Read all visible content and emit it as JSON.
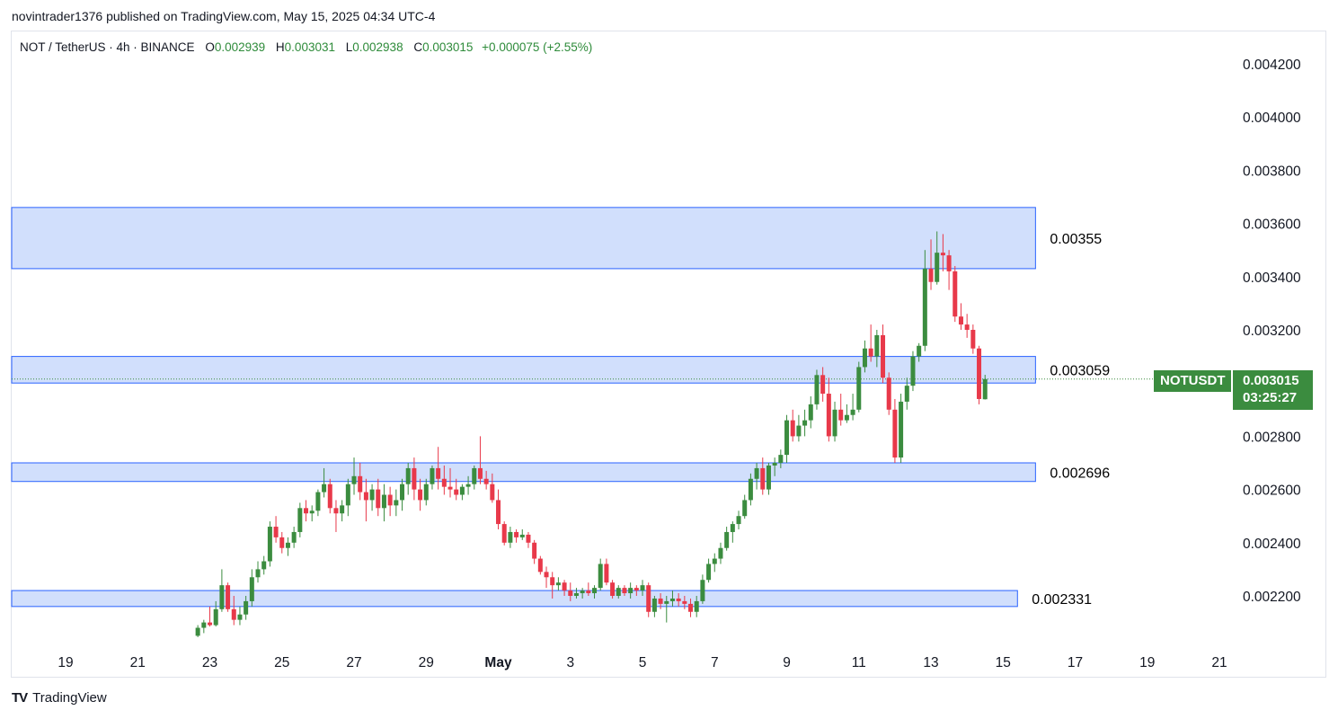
{
  "header": {
    "published": "novintrader1376 published on TradingView.com, May 15, 2025 04:34 UTC-4"
  },
  "legend": {
    "symbol": "NOT / TetherUS · 4h · BINANCE",
    "o_key": "O",
    "o_val": "0.002939",
    "h_key": "H",
    "h_val": "0.003031",
    "l_key": "L",
    "l_val": "0.002938",
    "c_key": "C",
    "c_val": "0.003015",
    "change": "+0.000075 (+2.55%)"
  },
  "price_tag": {
    "symbol": "NOTUSDT",
    "price": "0.003015",
    "countdown": "03:25:27"
  },
  "footer": {
    "brand": "TradingView",
    "logo": "TV"
  },
  "colors": {
    "up": "#3b8c3f",
    "down": "#e8394a",
    "zone_fill": "#d1dffc",
    "zone_stroke": "#2962ff",
    "tag": "#3b8c3f"
  },
  "chart_data": {
    "type": "candlestick",
    "ylim": [
      0.00205,
      0.0043
    ],
    "y_ticks": [
      "0.002200",
      "0.002400",
      "0.002600",
      "0.002800",
      "0.003000",
      "0.003200",
      "0.003400",
      "0.003600",
      "0.003800",
      "0.004000",
      "0.004200"
    ],
    "x_ticks": [
      {
        "label": "19",
        "day": 19
      },
      {
        "label": "21",
        "day": 21
      },
      {
        "label": "23",
        "day": 23
      },
      {
        "label": "25",
        "day": 25
      },
      {
        "label": "27",
        "day": 27
      },
      {
        "label": "29",
        "day": 29
      },
      {
        "label": "May",
        "day": 31
      },
      {
        "label": "3",
        "day": 33
      },
      {
        "label": "5",
        "day": 35
      },
      {
        "label": "7",
        "day": 37
      },
      {
        "label": "9",
        "day": 39
      },
      {
        "label": "11",
        "day": 41
      },
      {
        "label": "13",
        "day": 43
      },
      {
        "label": "15",
        "day": 45
      },
      {
        "label": "17",
        "day": 47
      },
      {
        "label": "19",
        "day": 49
      },
      {
        "label": "21",
        "day": 51
      }
    ],
    "zones": [
      {
        "label": "0.00355",
        "low": 0.00343,
        "high": 0.00366,
        "end_day": 45.9
      },
      {
        "label": "0.003059",
        "low": 0.003,
        "high": 0.0031,
        "end_day": 45.9
      },
      {
        "label": "0.002696",
        "low": 0.00263,
        "high": 0.0027,
        "end_day": 45.9
      },
      {
        "label": "0.002331",
        "low": 0.00216,
        "high": 0.00222,
        "end_day": 45.4
      }
    ],
    "current_price": 0.003015,
    "candles_start_day": 22.667,
    "candle_interval_days": 0.16667,
    "candles": [
      [
        0.00205,
        0.00209,
        0.002045,
        0.00208
      ],
      [
        0.00208,
        0.00211,
        0.00206,
        0.0021
      ],
      [
        0.0021,
        0.00216,
        0.002085,
        0.00209
      ],
      [
        0.00209,
        0.00218,
        0.002085,
        0.00215
      ],
      [
        0.00215,
        0.0023,
        0.00214,
        0.00224
      ],
      [
        0.00224,
        0.00225,
        0.00214,
        0.00215
      ],
      [
        0.00215,
        0.0022,
        0.00209,
        0.00211
      ],
      [
        0.00211,
        0.00216,
        0.00209,
        0.00213
      ],
      [
        0.00213,
        0.0022,
        0.00211,
        0.00218
      ],
      [
        0.00218,
        0.0023,
        0.00216,
        0.00227
      ],
      [
        0.00227,
        0.00233,
        0.00225,
        0.0023
      ],
      [
        0.0023,
        0.00235,
        0.00228,
        0.00233
      ],
      [
        0.00233,
        0.00248,
        0.00231,
        0.00246
      ],
      [
        0.00246,
        0.0025,
        0.0024,
        0.00242
      ],
      [
        0.00242,
        0.00244,
        0.00236,
        0.00238
      ],
      [
        0.00238,
        0.00242,
        0.00235,
        0.0024
      ],
      [
        0.0024,
        0.00246,
        0.00238,
        0.00244
      ],
      [
        0.00244,
        0.00255,
        0.00242,
        0.00253
      ],
      [
        0.00253,
        0.00256,
        0.00248,
        0.00251
      ],
      [
        0.00251,
        0.00254,
        0.00248,
        0.00252
      ],
      [
        0.00252,
        0.0026,
        0.0025,
        0.00259
      ],
      [
        0.00259,
        0.00268,
        0.00257,
        0.00262
      ],
      [
        0.00262,
        0.00264,
        0.00251,
        0.00253
      ],
      [
        0.00253,
        0.00256,
        0.00244,
        0.00251
      ],
      [
        0.00251,
        0.00256,
        0.00248,
        0.00254
      ],
      [
        0.00254,
        0.00264,
        0.0025,
        0.00262
      ],
      [
        0.00262,
        0.00272,
        0.00258,
        0.00265
      ],
      [
        0.00265,
        0.0027,
        0.00256,
        0.00259
      ],
      [
        0.00259,
        0.00264,
        0.00248,
        0.00256
      ],
      [
        0.00256,
        0.00262,
        0.00252,
        0.0026
      ],
      [
        0.0026,
        0.00264,
        0.0025,
        0.00253
      ],
      [
        0.00253,
        0.00262,
        0.00248,
        0.00258
      ],
      [
        0.00258,
        0.00261,
        0.0025,
        0.00254
      ],
      [
        0.00254,
        0.0026,
        0.0025,
        0.00256
      ],
      [
        0.00256,
        0.00264,
        0.00252,
        0.00262
      ],
      [
        0.00262,
        0.0027,
        0.00258,
        0.00268
      ],
      [
        0.00268,
        0.00272,
        0.00256,
        0.0026
      ],
      [
        0.0026,
        0.00264,
        0.00252,
        0.00256
      ],
      [
        0.00256,
        0.00264,
        0.00254,
        0.00262
      ],
      [
        0.00262,
        0.00269,
        0.0026,
        0.00268
      ],
      [
        0.00268,
        0.00276,
        0.0026,
        0.00264
      ],
      [
        0.00264,
        0.00269,
        0.00258,
        0.00261
      ],
      [
        0.00261,
        0.00268,
        0.00257,
        0.0026
      ],
      [
        0.0026,
        0.00264,
        0.00256,
        0.00258
      ],
      [
        0.00258,
        0.00262,
        0.00256,
        0.00261
      ],
      [
        0.00261,
        0.00265,
        0.00258,
        0.00262
      ],
      [
        0.00262,
        0.00269,
        0.0026,
        0.00268
      ],
      [
        0.00268,
        0.0028,
        0.00262,
        0.00264
      ],
      [
        0.00264,
        0.00267,
        0.0026,
        0.00262
      ],
      [
        0.00262,
        0.00266,
        0.00255,
        0.00256
      ],
      [
        0.00256,
        0.0026,
        0.00245,
        0.00247
      ],
      [
        0.00247,
        0.00248,
        0.00239,
        0.0024
      ],
      [
        0.0024,
        0.00246,
        0.00238,
        0.00244
      ],
      [
        0.00244,
        0.00245,
        0.0024,
        0.00242
      ],
      [
        0.00242,
        0.00245,
        0.00241,
        0.00243
      ],
      [
        0.00243,
        0.00244,
        0.00238,
        0.0024
      ],
      [
        0.0024,
        0.00241,
        0.00232,
        0.00234
      ],
      [
        0.00234,
        0.00235,
        0.00228,
        0.00229
      ],
      [
        0.00229,
        0.00231,
        0.00223,
        0.00227
      ],
      [
        0.00227,
        0.00229,
        0.00219,
        0.00224
      ],
      [
        0.00224,
        0.00227,
        0.00222,
        0.00225
      ],
      [
        0.00225,
        0.00226,
        0.0022,
        0.00222
      ],
      [
        0.00222,
        0.00225,
        0.00218,
        0.0022
      ],
      [
        0.0022,
        0.00223,
        0.00219,
        0.00221
      ],
      [
        0.00221,
        0.00223,
        0.00219,
        0.00222
      ],
      [
        0.00222,
        0.00225,
        0.0022,
        0.00221
      ],
      [
        0.00221,
        0.00224,
        0.00219,
        0.00223
      ],
      [
        0.00223,
        0.00234,
        0.00222,
        0.00232
      ],
      [
        0.00232,
        0.00234,
        0.00224,
        0.00225
      ],
      [
        0.00225,
        0.00226,
        0.00219,
        0.0022
      ],
      [
        0.0022,
        0.00224,
        0.00219,
        0.00223
      ],
      [
        0.00223,
        0.00224,
        0.0022,
        0.00221
      ],
      [
        0.00221,
        0.00225,
        0.00219,
        0.00223
      ],
      [
        0.00223,
        0.00224,
        0.0022,
        0.00222
      ],
      [
        0.00222,
        0.00226,
        0.0022,
        0.00224
      ],
      [
        0.00224,
        0.00225,
        0.00212,
        0.00214
      ],
      [
        0.00214,
        0.0022,
        0.00212,
        0.00219
      ],
      [
        0.00219,
        0.00221,
        0.00215,
        0.00217
      ],
      [
        0.00217,
        0.0022,
        0.0021,
        0.00218
      ],
      [
        0.00218,
        0.00222,
        0.00216,
        0.00219
      ],
      [
        0.00219,
        0.00221,
        0.00216,
        0.00218
      ],
      [
        0.00218,
        0.0022,
        0.00215,
        0.00217
      ],
      [
        0.00217,
        0.00219,
        0.00212,
        0.00214
      ],
      [
        0.00214,
        0.0022,
        0.00212,
        0.00218
      ],
      [
        0.00218,
        0.00228,
        0.00217,
        0.00226
      ],
      [
        0.00226,
        0.00234,
        0.00225,
        0.00232
      ],
      [
        0.00232,
        0.00236,
        0.00229,
        0.00234
      ],
      [
        0.00234,
        0.0024,
        0.00232,
        0.00238
      ],
      [
        0.00238,
        0.00246,
        0.00237,
        0.00244
      ],
      [
        0.00244,
        0.00248,
        0.0024,
        0.00247
      ],
      [
        0.00247,
        0.00252,
        0.00245,
        0.0025
      ],
      [
        0.0025,
        0.00258,
        0.00249,
        0.00256
      ],
      [
        0.00256,
        0.00266,
        0.00254,
        0.00264
      ],
      [
        0.00264,
        0.0027,
        0.0026,
        0.00268
      ],
      [
        0.00268,
        0.00272,
        0.00258,
        0.0026
      ],
      [
        0.0026,
        0.0027,
        0.00258,
        0.00269
      ],
      [
        0.00269,
        0.00272,
        0.00265,
        0.0027
      ],
      [
        0.0027,
        0.00275,
        0.00268,
        0.00273
      ],
      [
        0.00273,
        0.00288,
        0.0027,
        0.00286
      ],
      [
        0.00286,
        0.0029,
        0.00278,
        0.0028
      ],
      [
        0.0028,
        0.00288,
        0.00278,
        0.00284
      ],
      [
        0.00284,
        0.0029,
        0.0028,
        0.00286
      ],
      [
        0.00286,
        0.00295,
        0.00283,
        0.00292
      ],
      [
        0.00292,
        0.00305,
        0.0029,
        0.00303
      ],
      [
        0.00303,
        0.00306,
        0.00293,
        0.00296
      ],
      [
        0.00296,
        0.00302,
        0.00278,
        0.0028
      ],
      [
        0.0028,
        0.00293,
        0.00278,
        0.0029
      ],
      [
        0.0029,
        0.00296,
        0.00284,
        0.00286
      ],
      [
        0.00286,
        0.00292,
        0.00285,
        0.00288
      ],
      [
        0.00288,
        0.00296,
        0.00286,
        0.0029
      ],
      [
        0.0029,
        0.00308,
        0.00289,
        0.00306
      ],
      [
        0.00306,
        0.00316,
        0.00304,
        0.00313
      ],
      [
        0.00313,
        0.00322,
        0.00308,
        0.0031
      ],
      [
        0.0031,
        0.0032,
        0.00306,
        0.00318
      ],
      [
        0.00318,
        0.00322,
        0.003,
        0.00302
      ],
      [
        0.00302,
        0.00304,
        0.00288,
        0.0029
      ],
      [
        0.0029,
        0.00294,
        0.0027,
        0.00272
      ],
      [
        0.00272,
        0.00296,
        0.0027,
        0.00293
      ],
      [
        0.00293,
        0.00302,
        0.0029,
        0.00299
      ],
      [
        0.00299,
        0.00312,
        0.00297,
        0.0031
      ],
      [
        0.0031,
        0.00315,
        0.00308,
        0.00314
      ],
      [
        0.00314,
        0.0035,
        0.00312,
        0.00343
      ],
      [
        0.00343,
        0.00354,
        0.00335,
        0.00338
      ],
      [
        0.00338,
        0.00357,
        0.00337,
        0.00349
      ],
      [
        0.00349,
        0.00356,
        0.00342,
        0.00348
      ],
      [
        0.00348,
        0.0035,
        0.00335,
        0.00342
      ],
      [
        0.00342,
        0.00344,
        0.00323,
        0.00325
      ],
      [
        0.00325,
        0.0033,
        0.0032,
        0.00322
      ],
      [
        0.00322,
        0.00326,
        0.00317,
        0.0032
      ],
      [
        0.0032,
        0.00322,
        0.00311,
        0.00313
      ],
      [
        0.00313,
        0.00314,
        0.00292,
        0.00294
      ],
      [
        0.002939,
        0.003031,
        0.002938,
        0.003015
      ]
    ]
  }
}
